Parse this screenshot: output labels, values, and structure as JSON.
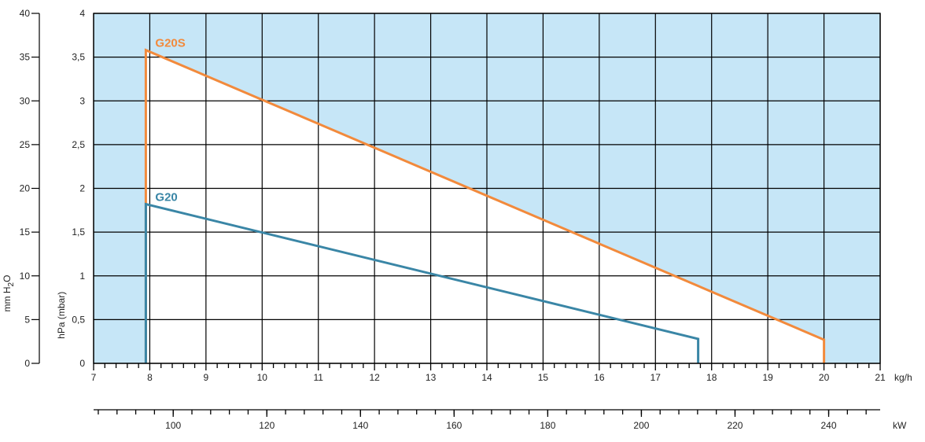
{
  "chart_data": {
    "type": "line",
    "x_axis": {
      "min": 7,
      "max": 21,
      "step": 1,
      "tick_labels": [
        "7",
        "8",
        "9",
        "10",
        "11",
        "12",
        "13",
        "14",
        "15",
        "16",
        "17",
        "18",
        "19",
        "20",
        "21"
      ],
      "unit": "kg/h"
    },
    "x2_axis": {
      "min": 83,
      "max": 251,
      "labeled_ticks": [
        100,
        120,
        140,
        160,
        180,
        200,
        220,
        240
      ],
      "minor_step": 4,
      "unit": "kW"
    },
    "y_axis": {
      "min": 0,
      "max": 4,
      "step": 0.5,
      "tick_labels": [
        "0",
        "0,5",
        "1",
        "1,5",
        "2",
        "2,5",
        "3",
        "3,5",
        "4"
      ],
      "label": "hPa (mbar)"
    },
    "y2_axis": {
      "min": 0,
      "max": 40,
      "step": 5,
      "tick_labels": [
        "0",
        "5",
        "10",
        "15",
        "20",
        "25",
        "30",
        "35",
        "40"
      ],
      "label": "mm H2O",
      "label_parts": [
        "mm H",
        "2",
        "O"
      ]
    },
    "grid": true,
    "colors": {
      "envelope_fill": "#c6e6f7",
      "inner_fill": "#ffffff",
      "grid": "#000000"
    },
    "series": [
      {
        "name": "G20S",
        "color": "#f28a3c",
        "points": [
          [
            7.93,
            0
          ],
          [
            7.93,
            3.58
          ],
          [
            20,
            0.27
          ],
          [
            20,
            0
          ]
        ]
      },
      {
        "name": "G20",
        "color": "#3a86a6",
        "points": [
          [
            7.93,
            0
          ],
          [
            7.93,
            1.82
          ],
          [
            17.76,
            0.28
          ],
          [
            17.76,
            0
          ]
        ]
      }
    ]
  }
}
